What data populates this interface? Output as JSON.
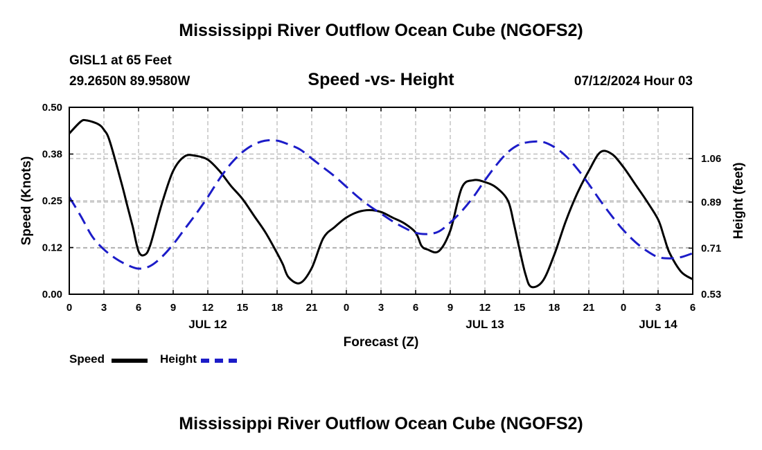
{
  "titles": {
    "main": "Mississippi River Outflow Ocean Cube (NGOFS2)",
    "bottom": "Mississippi River Outflow Ocean Cube (NGOFS2)",
    "station": "GISL1 at 65 Feet",
    "coords": "29.2650N  89.9580W",
    "subtitle": "Speed -vs- Height",
    "datestamp": "07/12/2024 Hour 03"
  },
  "colors": {
    "speed": "#000000",
    "height": "#1c1cc8",
    "grid": "#b4b4b4"
  },
  "chart_data": {
    "type": "line",
    "title": "Speed -vs- Height",
    "xlabel": "Forecast (Z)",
    "ylabel": "Speed (Knots)",
    "y2label": "Height (feet)",
    "xlim": [
      0,
      54
    ],
    "ylim": [
      0,
      0.5
    ],
    "y2lim": [
      0.53,
      1.26
    ],
    "x_ticks": [
      0,
      3,
      6,
      9,
      12,
      15,
      18,
      21,
      24,
      27,
      30,
      33,
      36,
      39,
      42,
      45,
      48,
      51,
      54
    ],
    "x_tick_labels": [
      "0",
      "3",
      "6",
      "9",
      "12",
      "15",
      "18",
      "21",
      "0",
      "3",
      "6",
      "9",
      "12",
      "15",
      "18",
      "21",
      "0",
      "3",
      "6"
    ],
    "y_ticks": [
      0,
      0.125,
      0.25,
      0.375,
      0.5
    ],
    "y_tick_labels": [
      "0.00",
      "0.12",
      "0.25",
      "0.38",
      "0.50"
    ],
    "y2_ticks": [
      0.53,
      0.71,
      0.89,
      1.06
    ],
    "y2_tick_labels": [
      "0.53",
      "0.71",
      "0.89",
      "1.06"
    ],
    "date_labels": [
      {
        "x": 12,
        "label": "JUL 12"
      },
      {
        "x": 36,
        "label": "JUL 13"
      },
      {
        "x": 51,
        "label": "JUL 14"
      }
    ],
    "legend_position": "bottom-left",
    "series": [
      {
        "name": "Speed",
        "axis": "left",
        "style": "solid",
        "x": [
          0,
          1,
          1.5,
          2.5,
          3,
          3.5,
          4.5,
          5,
          5.5,
          6,
          6.5,
          7,
          8,
          9,
          10,
          11,
          12,
          13,
          14,
          15,
          16,
          17,
          18,
          18.5,
          19,
          20,
          21,
          22,
          23,
          24,
          25,
          26,
          27,
          28,
          29,
          30,
          30.5,
          31,
          32,
          33,
          34,
          35,
          36,
          37,
          38,
          38.5,
          39,
          39.5,
          40,
          41,
          42,
          43,
          44,
          45,
          46,
          47,
          48,
          49,
          50,
          51,
          51.5,
          52,
          53,
          54
        ],
        "values": [
          0.43,
          0.462,
          0.465,
          0.455,
          0.44,
          0.41,
          0.3,
          0.24,
          0.18,
          0.115,
          0.105,
          0.13,
          0.24,
          0.33,
          0.369,
          0.37,
          0.36,
          0.33,
          0.29,
          0.255,
          0.21,
          0.165,
          0.11,
          0.08,
          0.045,
          0.03,
          0.07,
          0.15,
          0.18,
          0.205,
          0.22,
          0.225,
          0.22,
          0.205,
          0.19,
          0.165,
          0.13,
          0.12,
          0.115,
          0.17,
          0.285,
          0.305,
          0.3,
          0.285,
          0.25,
          0.19,
          0.12,
          0.055,
          0.02,
          0.035,
          0.105,
          0.195,
          0.27,
          0.33,
          0.38,
          0.375,
          0.34,
          0.295,
          0.25,
          0.2,
          0.155,
          0.11,
          0.06,
          0.04
        ]
      },
      {
        "name": "Height",
        "axis": "right",
        "style": "dashed",
        "x": [
          0,
          1,
          2,
          3,
          4,
          5,
          6,
          7,
          8,
          9,
          10,
          11,
          12,
          13,
          14,
          15,
          16,
          17,
          18,
          19,
          20,
          21,
          22,
          23,
          24,
          25,
          26,
          27,
          28,
          29,
          30,
          31,
          32,
          33,
          34,
          35,
          36,
          37,
          38,
          39,
          40,
          41,
          42,
          43,
          44,
          45,
          46,
          47,
          48,
          49,
          50,
          51,
          52,
          53,
          54
        ],
        "values": [
          0.91,
          0.835,
          0.755,
          0.705,
          0.67,
          0.645,
          0.63,
          0.64,
          0.675,
          0.725,
          0.785,
          0.845,
          0.91,
          0.98,
          1.04,
          1.085,
          1.115,
          1.13,
          1.13,
          1.115,
          1.095,
          1.06,
          1.025,
          0.99,
          0.95,
          0.91,
          0.875,
          0.845,
          0.815,
          0.79,
          0.77,
          0.765,
          0.775,
          0.81,
          0.855,
          0.91,
          0.975,
          1.035,
          1.085,
          1.115,
          1.125,
          1.125,
          1.105,
          1.07,
          1.02,
          0.96,
          0.895,
          0.835,
          0.78,
          0.735,
          0.7,
          0.675,
          0.67,
          0.675,
          0.69
        ]
      }
    ]
  },
  "legend": [
    {
      "label": "Speed"
    },
    {
      "label": "Height"
    }
  ]
}
